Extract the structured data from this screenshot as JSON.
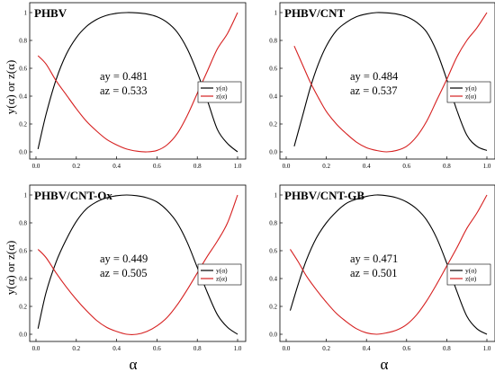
{
  "figure": {
    "xlabel": "α",
    "ylabel": "y(α) or z(α)"
  },
  "chart_data": [
    {
      "type": "line",
      "title": "PHBV",
      "xlim": [
        0.0,
        1.0
      ],
      "ylim": [
        0.0,
        1.0
      ],
      "x_ticks": [
        "0.0",
        "0.2",
        "0.4",
        "0.6",
        "0.8",
        "1.0"
      ],
      "y_ticks": [
        "0.0",
        "0.2",
        "0.4",
        "0.6",
        "0.8",
        "1"
      ],
      "annotations": [
        "ay = 0.481",
        "az = 0.533"
      ],
      "legend_position": "center-right",
      "series": [
        {
          "name": "y(α)",
          "color": "#000000",
          "x": [
            0.01,
            0.05,
            0.1,
            0.15,
            0.2,
            0.25,
            0.3,
            0.35,
            0.4,
            0.45,
            0.5,
            0.55,
            0.6,
            0.65,
            0.7,
            0.75,
            0.8,
            0.85,
            0.9,
            0.95,
            1.0
          ],
          "y": [
            0.02,
            0.27,
            0.52,
            0.7,
            0.82,
            0.9,
            0.95,
            0.98,
            0.995,
            1.0,
            0.998,
            0.99,
            0.97,
            0.93,
            0.86,
            0.74,
            0.57,
            0.37,
            0.16,
            0.06,
            0.0
          ]
        },
        {
          "name": "z(α)",
          "color": "#d62020",
          "x": [
            0.01,
            0.05,
            0.1,
            0.15,
            0.2,
            0.25,
            0.3,
            0.35,
            0.4,
            0.45,
            0.5,
            0.55,
            0.6,
            0.65,
            0.7,
            0.75,
            0.8,
            0.85,
            0.9,
            0.95,
            1.0
          ],
          "y": [
            0.69,
            0.63,
            0.51,
            0.41,
            0.31,
            0.22,
            0.15,
            0.09,
            0.05,
            0.02,
            0.005,
            0.0,
            0.01,
            0.05,
            0.13,
            0.26,
            0.42,
            0.58,
            0.74,
            0.85,
            1.0
          ]
        }
      ]
    },
    {
      "type": "line",
      "title": "PHBV/CNT",
      "xlim": [
        0.0,
        1.0
      ],
      "ylim": [
        0.0,
        1.0
      ],
      "x_ticks": [
        "0.0",
        "0.2",
        "0.4",
        "0.6",
        "0.8",
        "1.0"
      ],
      "y_ticks": [
        "0.0",
        "0.2",
        "0.4",
        "0.6",
        "0.8",
        "1"
      ],
      "annotations": [
        "ay = 0.484",
        "az = 0.537"
      ],
      "legend_position": "center-right",
      "series": [
        {
          "name": "y(α)",
          "color": "#000000",
          "x": [
            0.04,
            0.08,
            0.12,
            0.16,
            0.2,
            0.25,
            0.3,
            0.35,
            0.4,
            0.45,
            0.5,
            0.55,
            0.6,
            0.65,
            0.7,
            0.75,
            0.8,
            0.85,
            0.9,
            0.95,
            1.0
          ],
          "y": [
            0.04,
            0.25,
            0.46,
            0.63,
            0.76,
            0.87,
            0.93,
            0.97,
            0.99,
            1.0,
            0.998,
            0.99,
            0.97,
            0.93,
            0.86,
            0.72,
            0.52,
            0.3,
            0.12,
            0.04,
            0.01
          ]
        },
        {
          "name": "z(α)",
          "color": "#d62020",
          "x": [
            0.04,
            0.08,
            0.12,
            0.16,
            0.2,
            0.25,
            0.3,
            0.35,
            0.4,
            0.45,
            0.5,
            0.55,
            0.6,
            0.65,
            0.7,
            0.75,
            0.8,
            0.85,
            0.9,
            0.95,
            1.0
          ],
          "y": [
            0.76,
            0.63,
            0.5,
            0.39,
            0.29,
            0.2,
            0.13,
            0.07,
            0.03,
            0.01,
            0.0,
            0.01,
            0.04,
            0.11,
            0.22,
            0.37,
            0.52,
            0.68,
            0.8,
            0.89,
            1.0
          ]
        }
      ]
    },
    {
      "type": "line",
      "title": "PHBV/CNT-Ox",
      "xlim": [
        0.0,
        1.0
      ],
      "ylim": [
        0.0,
        1.0
      ],
      "x_ticks": [
        "0.0",
        "0.2",
        "0.4",
        "0.6",
        "0.8",
        "1.0"
      ],
      "y_ticks": [
        "0.0",
        "0.2",
        "0.4",
        "0.6",
        "0.8",
        "1"
      ],
      "annotations": [
        "ay = 0.449",
        "az = 0.505"
      ],
      "legend_position": "center-right",
      "series": [
        {
          "name": "y(α)",
          "color": "#000000",
          "x": [
            0.01,
            0.05,
            0.1,
            0.15,
            0.2,
            0.25,
            0.3,
            0.35,
            0.4,
            0.45,
            0.5,
            0.55,
            0.6,
            0.65,
            0.7,
            0.75,
            0.8,
            0.85,
            0.9,
            0.95,
            1.0
          ],
          "y": [
            0.04,
            0.3,
            0.52,
            0.68,
            0.81,
            0.9,
            0.95,
            0.98,
            0.995,
            1.0,
            0.995,
            0.98,
            0.95,
            0.89,
            0.8,
            0.66,
            0.48,
            0.3,
            0.14,
            0.05,
            0.0
          ]
        },
        {
          "name": "z(α)",
          "color": "#d62020",
          "x": [
            0.01,
            0.05,
            0.1,
            0.15,
            0.2,
            0.25,
            0.3,
            0.35,
            0.4,
            0.45,
            0.5,
            0.55,
            0.6,
            0.65,
            0.7,
            0.75,
            0.8,
            0.85,
            0.9,
            0.95,
            1.0
          ],
          "y": [
            0.61,
            0.55,
            0.44,
            0.34,
            0.25,
            0.17,
            0.1,
            0.05,
            0.02,
            0.0,
            0.0,
            0.02,
            0.06,
            0.12,
            0.21,
            0.32,
            0.44,
            0.56,
            0.67,
            0.8,
            1.0
          ]
        }
      ]
    },
    {
      "type": "line",
      "title": "PHBV/CNT-GB",
      "xlim": [
        0.0,
        1.0
      ],
      "ylim": [
        0.0,
        1.0
      ],
      "x_ticks": [
        "0.0",
        "0.2",
        "0.4",
        "0.6",
        "0.8",
        "1.0"
      ],
      "y_ticks": [
        "0.0",
        "0.2",
        "0.4",
        "0.6",
        "0.8",
        "1"
      ],
      "annotations": [
        "ay = 0.471",
        "az = 0.501"
      ],
      "legend_position": "center-right",
      "series": [
        {
          "name": "y(α)",
          "color": "#000000",
          "x": [
            0.02,
            0.06,
            0.1,
            0.15,
            0.2,
            0.25,
            0.3,
            0.35,
            0.4,
            0.45,
            0.5,
            0.55,
            0.6,
            0.65,
            0.7,
            0.75,
            0.8,
            0.85,
            0.9,
            0.95,
            1.0
          ],
          "y": [
            0.17,
            0.36,
            0.53,
            0.69,
            0.8,
            0.88,
            0.94,
            0.97,
            0.99,
            1.0,
            0.995,
            0.98,
            0.95,
            0.9,
            0.82,
            0.69,
            0.51,
            0.31,
            0.13,
            0.04,
            0.0
          ]
        },
        {
          "name": "z(α)",
          "color": "#d62020",
          "x": [
            0.02,
            0.06,
            0.1,
            0.15,
            0.2,
            0.25,
            0.3,
            0.35,
            0.4,
            0.45,
            0.5,
            0.55,
            0.6,
            0.65,
            0.7,
            0.75,
            0.8,
            0.85,
            0.9,
            0.95,
            1.0
          ],
          "y": [
            0.61,
            0.52,
            0.42,
            0.32,
            0.23,
            0.15,
            0.09,
            0.04,
            0.01,
            0.0,
            0.01,
            0.03,
            0.07,
            0.14,
            0.24,
            0.36,
            0.49,
            0.62,
            0.76,
            0.87,
            1.0
          ]
        }
      ]
    }
  ]
}
